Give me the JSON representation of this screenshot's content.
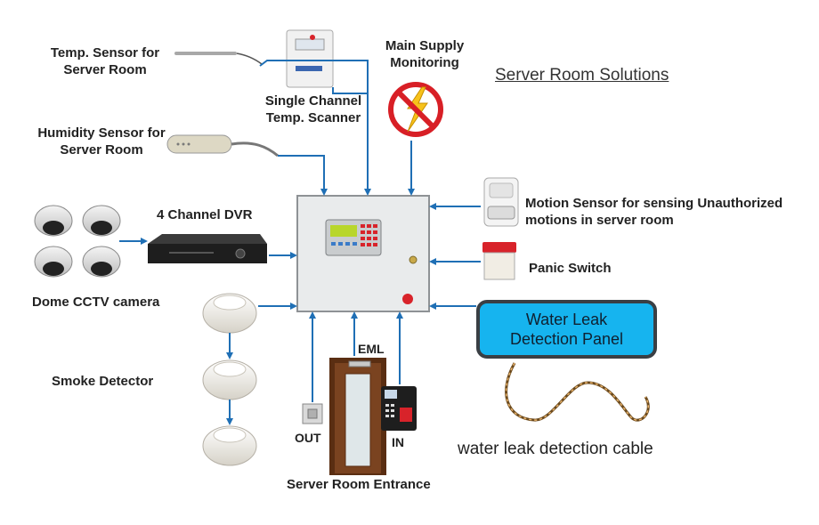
{
  "title": "Server Room Solutions",
  "labels": {
    "temp_sensor": [
      "Temp. Sensor for",
      "Server Room"
    ],
    "single_channel": [
      "Single Channel",
      "Temp. Scanner"
    ],
    "main_supply": [
      "Main Supply",
      "Monitoring"
    ],
    "humidity_sensor": [
      "Humidity Sensor for",
      "Server Room"
    ],
    "dvr": "4 Channel DVR",
    "dome_cctv": "Dome CCTV camera",
    "motion_sensor": [
      "Motion Sensor for sensing Unauthorized",
      "motions in server room"
    ],
    "panic_switch": "Panic Switch",
    "water_leak_panel": [
      "Water Leak",
      "Detection Panel"
    ],
    "smoke_detector": "Smoke Detector",
    "eml": "EML",
    "out": "OUT",
    "in": "IN",
    "entrance": "Server Room Entrance",
    "water_leak_cable": "water leak detection cable"
  },
  "colors": {
    "arrow": "#1f6fb5",
    "panel_blue": "#16b4ef",
    "panel_border": "#3a3f44",
    "no_sign_red": "#d81f26",
    "lightning_yellow": "#f7c21b"
  }
}
